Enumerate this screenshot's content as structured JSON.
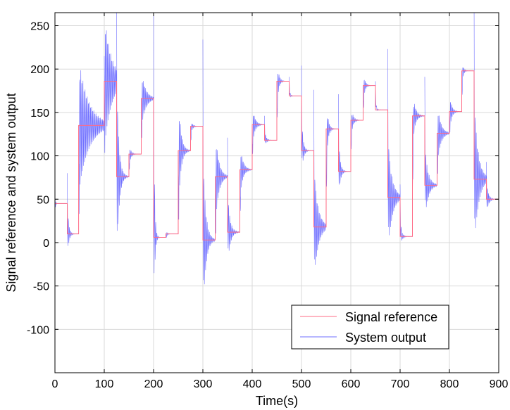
{
  "chart_data": {
    "type": "line",
    "xlabel": "Time(s)",
    "ylabel": "Signal reference and system output",
    "xlim": [
      0,
      900
    ],
    "ylim": [
      -150,
      265
    ],
    "xticks": [
      0,
      100,
      200,
      300,
      400,
      500,
      600,
      700,
      800,
      900
    ],
    "yticks": [
      -100,
      -50,
      0,
      50,
      100,
      150,
      200,
      250
    ],
    "grid": true,
    "legend_position": "bottom-right",
    "colors": {
      "reference": "#ff6b86",
      "output": "#6f6fff",
      "grid": "#d9d9d9"
    },
    "series": [
      {
        "name": "Signal reference",
        "style": "step",
        "segments": [
          {
            "x0": 0,
            "x1": 25,
            "y": 45
          },
          {
            "x0": 25,
            "x1": 48,
            "y": 10
          },
          {
            "x0": 48,
            "x1": 100,
            "y": 135
          },
          {
            "x0": 100,
            "x1": 125,
            "y": 186
          },
          {
            "x0": 125,
            "x1": 150,
            "y": 76
          },
          {
            "x0": 150,
            "x1": 175,
            "y": 102
          },
          {
            "x0": 175,
            "x1": 200,
            "y": 166
          },
          {
            "x0": 200,
            "x1": 225,
            "y": 6
          },
          {
            "x0": 225,
            "x1": 250,
            "y": 10
          },
          {
            "x0": 250,
            "x1": 275,
            "y": 106
          },
          {
            "x0": 275,
            "x1": 300,
            "y": 134
          },
          {
            "x0": 300,
            "x1": 325,
            "y": 3
          },
          {
            "x0": 325,
            "x1": 350,
            "y": 76
          },
          {
            "x0": 350,
            "x1": 375,
            "y": 12
          },
          {
            "x0": 375,
            "x1": 400,
            "y": 84
          },
          {
            "x0": 400,
            "x1": 425,
            "y": 136
          },
          {
            "x0": 425,
            "x1": 450,
            "y": 118
          },
          {
            "x0": 450,
            "x1": 475,
            "y": 186
          },
          {
            "x0": 475,
            "x1": 500,
            "y": 169
          },
          {
            "x0": 500,
            "x1": 525,
            "y": 106
          },
          {
            "x0": 525,
            "x1": 550,
            "y": 18
          },
          {
            "x0": 550,
            "x1": 575,
            "y": 131
          },
          {
            "x0": 575,
            "x1": 600,
            "y": 82
          },
          {
            "x0": 600,
            "x1": 625,
            "y": 141
          },
          {
            "x0": 625,
            "x1": 650,
            "y": 181
          },
          {
            "x0": 650,
            "x1": 675,
            "y": 153
          },
          {
            "x0": 675,
            "x1": 700,
            "y": 52
          },
          {
            "x0": 700,
            "x1": 725,
            "y": 7
          },
          {
            "x0": 725,
            "x1": 750,
            "y": 146
          },
          {
            "x0": 750,
            "x1": 775,
            "y": 66
          },
          {
            "x0": 775,
            "x1": 800,
            "y": 126
          },
          {
            "x0": 800,
            "x1": 825,
            "y": 151
          },
          {
            "x0": 825,
            "x1": 850,
            "y": 198
          },
          {
            "x0": 850,
            "x1": 875,
            "y": 73
          },
          {
            "x0": 875,
            "x1": 900,
            "y": 50
          }
        ]
      },
      {
        "name": "System output",
        "style": "damped-oscillation",
        "segments": [
          {
            "x0": 0,
            "x1": 25,
            "y_start": 45,
            "y": 45,
            "amp": 12,
            "decay": 0.9
          },
          {
            "x0": 25,
            "x1": 48,
            "y_start": 45,
            "y": 10,
            "amp": 35,
            "decay": 0.35
          },
          {
            "x0": 48,
            "x1": 100,
            "y_start": 10,
            "y": 135,
            "amp": 80,
            "decay": 0.05
          },
          {
            "x0": 100,
            "x1": 125,
            "y_start": 135,
            "y": 186,
            "amp": 80,
            "decay": 0.07
          },
          {
            "x0": 125,
            "x1": 150,
            "y_start": 186,
            "y": 76,
            "amp": 120,
            "decay": 0.22
          },
          {
            "x0": 150,
            "x1": 175,
            "y_start": 76,
            "y": 102,
            "amp": 15,
            "decay": 0.3
          },
          {
            "x0": 175,
            "x1": 200,
            "y_start": 102,
            "y": 166,
            "amp": 35,
            "decay": 0.12
          },
          {
            "x0": 200,
            "x1": 225,
            "y_start": 166,
            "y": 6,
            "amp": 150,
            "decay": 0.5
          },
          {
            "x0": 225,
            "x1": 250,
            "y_start": 6,
            "y": 10,
            "amp": 5,
            "decay": 0.4
          },
          {
            "x0": 250,
            "x1": 275,
            "y_start": 10,
            "y": 106,
            "amp": 75,
            "decay": 0.2
          },
          {
            "x0": 275,
            "x1": 300,
            "y_start": 106,
            "y": 134,
            "amp": 10,
            "decay": 0.3
          },
          {
            "x0": 300,
            "x1": 325,
            "y_start": 134,
            "y": 3,
            "amp": 100,
            "decay": 0.18
          },
          {
            "x0": 325,
            "x1": 350,
            "y_start": 3,
            "y": 76,
            "amp": 60,
            "decay": 0.15
          },
          {
            "x0": 350,
            "x1": 375,
            "y_start": 76,
            "y": 12,
            "amp": 45,
            "decay": 0.2
          },
          {
            "x0": 375,
            "x1": 400,
            "y_start": 12,
            "y": 84,
            "amp": 35,
            "decay": 0.18
          },
          {
            "x0": 400,
            "x1": 425,
            "y_start": 84,
            "y": 136,
            "amp": 25,
            "decay": 0.2
          },
          {
            "x0": 425,
            "x1": 450,
            "y_start": 136,
            "y": 118,
            "amp": 10,
            "decay": 0.3
          },
          {
            "x0": 450,
            "x1": 475,
            "y_start": 118,
            "y": 186,
            "amp": 30,
            "decay": 0.3
          },
          {
            "x0": 475,
            "x1": 500,
            "y_start": 186,
            "y": 169,
            "amp": 5,
            "decay": 0.4
          },
          {
            "x0": 500,
            "x1": 525,
            "y_start": 169,
            "y": 106,
            "amp": 35,
            "decay": 0.3
          },
          {
            "x0": 525,
            "x1": 550,
            "y_start": 106,
            "y": 18,
            "amp": 70,
            "decay": 0.12
          },
          {
            "x0": 550,
            "x1": 575,
            "y_start": 18,
            "y": 131,
            "amp": 45,
            "decay": 0.3
          },
          {
            "x0": 575,
            "x1": 600,
            "y_start": 131,
            "y": 82,
            "amp": 40,
            "decay": 0.3
          },
          {
            "x0": 600,
            "x1": 625,
            "y_start": 82,
            "y": 141,
            "amp": 20,
            "decay": 0.25
          },
          {
            "x0": 625,
            "x1": 650,
            "y_start": 141,
            "y": 181,
            "amp": 20,
            "decay": 0.3
          },
          {
            "x0": 650,
            "x1": 675,
            "y_start": 181,
            "y": 153,
            "amp": 5,
            "decay": 0.4
          },
          {
            "x0": 675,
            "x1": 700,
            "y_start": 153,
            "y": 52,
            "amp": 70,
            "decay": 0.12
          },
          {
            "x0": 700,
            "x1": 725,
            "y_start": 52,
            "y": 7,
            "amp": 15,
            "decay": 0.3
          },
          {
            "x0": 725,
            "x1": 750,
            "y_start": 7,
            "y": 146,
            "amp": 35,
            "decay": 0.2
          },
          {
            "x0": 750,
            "x1": 775,
            "y_start": 146,
            "y": 66,
            "amp": 45,
            "decay": 0.15
          },
          {
            "x0": 775,
            "x1": 800,
            "y_start": 66,
            "y": 126,
            "amp": 40,
            "decay": 0.15
          },
          {
            "x0": 800,
            "x1": 825,
            "y_start": 126,
            "y": 151,
            "amp": 25,
            "decay": 0.25
          },
          {
            "x0": 825,
            "x1": 850,
            "y_start": 151,
            "y": 198,
            "amp": 20,
            "decay": 0.4
          },
          {
            "x0": 850,
            "x1": 875,
            "y_start": 198,
            "y": 73,
            "amp": 90,
            "decay": 0.12
          },
          {
            "x0": 875,
            "x1": 900,
            "y_start": 73,
            "y": 50,
            "amp": 20,
            "decay": 0.25
          }
        ]
      }
    ]
  }
}
